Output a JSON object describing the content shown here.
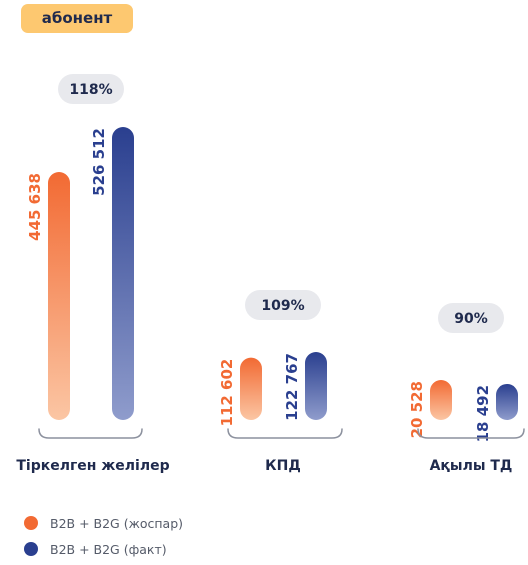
{
  "unit_label": "абонент",
  "colors": {
    "plan": "#f26a33",
    "plan_light": "#fbc6a4",
    "fact": "#2a3f8f",
    "fact_light": "#8f9ccc",
    "badge": "#fdc870",
    "pill": "#e8e9ed",
    "bracket": "#8c919e",
    "text": "#1f2a4d"
  },
  "legend": [
    {
      "label": "B2B + B2G (жоспар)",
      "color": "#f26a33"
    },
    {
      "label": "B2B + B2G (факт)",
      "color": "#2a3f8f"
    }
  ],
  "chart_data": {
    "type": "bar",
    "categories": [
      "Тіркелген желілер",
      "КПД",
      "Ақылы ТД"
    ],
    "series": [
      {
        "name": "B2B + B2G (жоспар)",
        "values": [
          445638,
          112602,
          20528
        ],
        "labels": [
          "445 638",
          "112 602",
          "20 528"
        ]
      },
      {
        "name": "B2B + B2G (факт)",
        "values": [
          526512,
          122767,
          18492
        ],
        "labels": [
          "526 512",
          "122 767",
          "18 492"
        ]
      }
    ],
    "percentages": [
      "118%",
      "109%",
      "90%"
    ],
    "value_axis_scale": "independent per group",
    "grid": false,
    "legend_position": "bottom-left"
  }
}
